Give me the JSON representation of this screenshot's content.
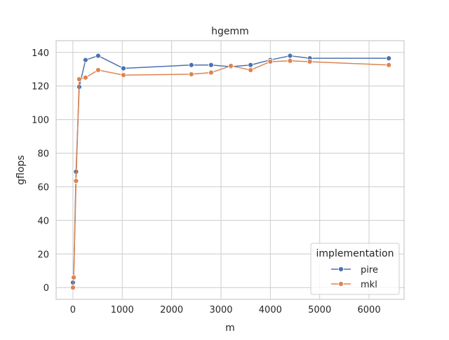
{
  "chart_data": {
    "type": "line",
    "title": "hgemm",
    "xlabel": "m",
    "ylabel": "gflops",
    "xlim": [
      -340,
      6710
    ],
    "ylim": [
      -7,
      147
    ],
    "xticks": [
      0,
      1000,
      2000,
      3000,
      4000,
      5000,
      6000
    ],
    "yticks": [
      0,
      20,
      40,
      60,
      80,
      100,
      120,
      140
    ],
    "grid": true,
    "legend": {
      "title": "implementation",
      "placement": "lower-right"
    },
    "series": [
      {
        "name": "pire",
        "color": "#4c72b0",
        "marker": "circle",
        "x": [
          1,
          16,
          64,
          128,
          256,
          512,
          1024,
          2400,
          2800,
          3200,
          3600,
          4000,
          4400,
          4800,
          6400
        ],
        "y": [
          3,
          6.5,
          69,
          119.5,
          135.5,
          138,
          130.5,
          132.5,
          132.5,
          131.5,
          132.5,
          135.5,
          138,
          136.5,
          136.5
        ]
      },
      {
        "name": "mkl",
        "color": "#dd8452",
        "marker": "circle",
        "x": [
          1,
          16,
          64,
          128,
          256,
          512,
          1024,
          2400,
          2800,
          3200,
          3600,
          4000,
          4400,
          4800,
          6400
        ],
        "y": [
          0,
          6,
          63.5,
          124,
          125,
          129.5,
          126.5,
          127,
          128,
          132,
          129.5,
          134.5,
          135,
          134.5,
          132.5
        ]
      }
    ]
  }
}
